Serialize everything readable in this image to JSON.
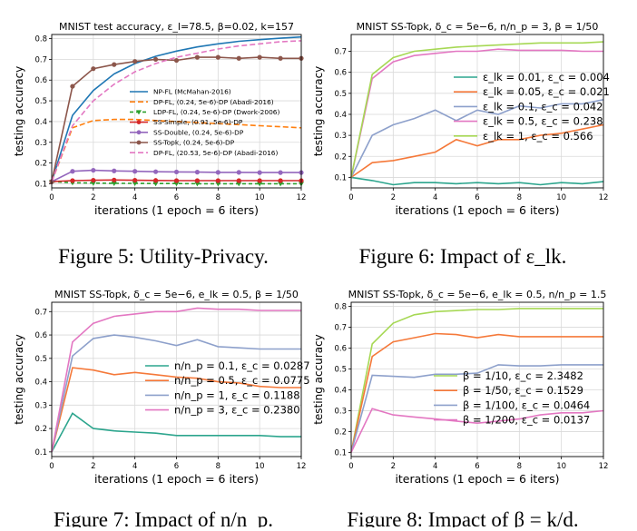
{
  "chart_data": [
    {
      "type": "line",
      "title": "MNIST test accuracy, ε_l=78.5, β=0.02, k=157",
      "xlabel": "iterations (1 epoch = 6 iters)",
      "ylabel": "testing accuracy",
      "x_ticks": [
        0,
        2,
        4,
        6,
        8,
        10,
        12
      ],
      "y_ticks": [
        0.1,
        0.2,
        0.3,
        0.4,
        0.5,
        0.6,
        0.7,
        0.8
      ],
      "xlim": [
        0,
        12
      ],
      "ylim": [
        0.08,
        0.82
      ],
      "grid": true,
      "legend": "center-right",
      "x": [
        0,
        1,
        2,
        3,
        4,
        5,
        6,
        7,
        8,
        9,
        10,
        11,
        12
      ],
      "series": [
        {
          "name": "NP-FL (McMahan-2016)",
          "color": "#1f77b4",
          "dash": "",
          "marker": "",
          "values": [
            0.11,
            0.43,
            0.55,
            0.63,
            0.68,
            0.715,
            0.74,
            0.76,
            0.775,
            0.787,
            0.795,
            0.802,
            0.808
          ]
        },
        {
          "name": "DP-FL, (0.24, 5e-6)-DP (Abadi-2016)",
          "color": "#ff7f0e",
          "dash": "6,3",
          "marker": "",
          "values": [
            0.11,
            0.37,
            0.405,
            0.41,
            0.41,
            0.405,
            0.4,
            0.395,
            0.39,
            0.385,
            0.38,
            0.375,
            0.37
          ]
        },
        {
          "name": "LDP-FL, (0.24, 5e-6)-DP (Dwork-2006)",
          "color": "#2ca02c",
          "dash": "4,3",
          "marker": "triangle",
          "values": [
            0.11,
            0.105,
            0.103,
            0.102,
            0.102,
            0.101,
            0.101,
            0.1,
            0.1,
            0.1,
            0.1,
            0.1,
            0.1
          ]
        },
        {
          "name": "SS-Simple, (0.91, 5e-6)-DP",
          "color": "#d62728",
          "dash": "",
          "marker": "circle",
          "values": [
            0.11,
            0.115,
            0.117,
            0.118,
            0.117,
            0.116,
            0.115,
            0.115,
            0.115,
            0.115,
            0.115,
            0.115,
            0.115
          ]
        },
        {
          "name": "SS-Double, (0.24, 5e-6)-DP",
          "color": "#9467bd",
          "dash": "",
          "marker": "circle",
          "values": [
            0.11,
            0.16,
            0.165,
            0.162,
            0.16,
            0.158,
            0.157,
            0.156,
            0.155,
            0.155,
            0.154,
            0.154,
            0.154
          ]
        },
        {
          "name": "SS-Topk, (0.24, 5e-6)-DP",
          "color": "#8c564b",
          "dash": "",
          "marker": "circle",
          "values": [
            0.11,
            0.57,
            0.655,
            0.675,
            0.69,
            0.7,
            0.695,
            0.71,
            0.71,
            0.705,
            0.71,
            0.705,
            0.705
          ]
        },
        {
          "name": "DP-FL, (20.53, 5e-6)-DP (Abadi-2016)",
          "color": "#e377c2",
          "dash": "6,3",
          "marker": "",
          "values": [
            0.11,
            0.38,
            0.5,
            0.58,
            0.64,
            0.68,
            0.71,
            0.73,
            0.75,
            0.765,
            0.775,
            0.785,
            0.79
          ]
        }
      ]
    },
    {
      "type": "line",
      "title": "MNIST SS-Topk, δ_c = 5e−6, n/n_p = 3, β = 1/50",
      "xlabel": "iterations (1 epoch = 6 iters)",
      "ylabel": "testing accuracy",
      "x_ticks": [
        0,
        2,
        4,
        6,
        8,
        10,
        12
      ],
      "y_ticks": [
        0.1,
        0.2,
        0.3,
        0.4,
        0.5,
        0.6,
        0.7
      ],
      "xlim": [
        0,
        12
      ],
      "ylim": [
        0.05,
        0.78
      ],
      "grid": true,
      "legend": "center-right",
      "x": [
        0,
        1,
        2,
        3,
        4,
        5,
        6,
        7,
        8,
        9,
        10,
        11,
        12
      ],
      "series": [
        {
          "name": "ε_lk = 0.01, ε_c = 0.004",
          "color": "#2ca58d",
          "values": [
            0.1,
            0.085,
            0.065,
            0.075,
            0.075,
            0.07,
            0.075,
            0.07,
            0.075,
            0.065,
            0.075,
            0.07,
            0.08
          ]
        },
        {
          "name": "ε_lk = 0.05, ε_c = 0.021",
          "color": "#f5793a",
          "values": [
            0.1,
            0.17,
            0.18,
            0.2,
            0.22,
            0.28,
            0.25,
            0.28,
            0.28,
            0.3,
            0.31,
            0.33,
            0.35
          ]
        },
        {
          "name": "ε_lk = 0.1, ε_c = 0.042",
          "color": "#8da0cb",
          "values": [
            0.1,
            0.3,
            0.35,
            0.38,
            0.42,
            0.37,
            0.42,
            0.4,
            0.44,
            0.43,
            0.45,
            0.45,
            0.47
          ]
        },
        {
          "name": "ε_lk = 0.5, ε_c = 0.238",
          "color": "#e377c2",
          "values": [
            0.1,
            0.57,
            0.65,
            0.68,
            0.69,
            0.7,
            0.7,
            0.71,
            0.705,
            0.705,
            0.705,
            0.7,
            0.7
          ]
        },
        {
          "name": "ε_lk = 1, ε_c = 0.566",
          "color": "#a6d854",
          "values": [
            0.1,
            0.59,
            0.67,
            0.7,
            0.71,
            0.72,
            0.725,
            0.73,
            0.735,
            0.74,
            0.74,
            0.74,
            0.745
          ]
        }
      ]
    },
    {
      "type": "line",
      "title": "MNIST SS-Topk, δ_c = 5e−6, e_lk = 0.5, β = 1/50",
      "xlabel": "iterations (1 epoch = 6 iters)",
      "ylabel": "testing accuracy",
      "x_ticks": [
        0,
        2,
        4,
        6,
        8,
        10,
        12
      ],
      "y_ticks": [
        0.1,
        0.2,
        0.3,
        0.4,
        0.5,
        0.6,
        0.7
      ],
      "xlim": [
        0,
        12
      ],
      "ylim": [
        0.08,
        0.74
      ],
      "grid": true,
      "legend": "center",
      "x": [
        0,
        1,
        2,
        3,
        4,
        5,
        6,
        7,
        8,
        9,
        10,
        11,
        12
      ],
      "series": [
        {
          "name": "n/n_p = 0.1, ε_c = 0.0287",
          "color": "#2ca58d",
          "values": [
            0.1,
            0.265,
            0.2,
            0.19,
            0.185,
            0.18,
            0.17,
            0.17,
            0.17,
            0.17,
            0.17,
            0.165,
            0.165
          ]
        },
        {
          "name": "n/n_p = 0.5, ε_c = 0.0775",
          "color": "#f5793a",
          "values": [
            0.1,
            0.46,
            0.45,
            0.43,
            0.44,
            0.43,
            0.42,
            0.415,
            0.4,
            0.395,
            0.38,
            0.375,
            0.375
          ]
        },
        {
          "name": "n/n_p = 1, ε_c = 0.1188",
          "color": "#8da0cb",
          "values": [
            0.1,
            0.51,
            0.585,
            0.6,
            0.59,
            0.575,
            0.555,
            0.58,
            0.55,
            0.545,
            0.54,
            0.54,
            0.54
          ]
        },
        {
          "name": "n/n_p = 3, ε_c = 0.2380",
          "color": "#e377c2",
          "values": [
            0.1,
            0.57,
            0.65,
            0.68,
            0.69,
            0.7,
            0.7,
            0.715,
            0.71,
            0.71,
            0.705,
            0.705,
            0.705
          ]
        }
      ]
    },
    {
      "type": "line",
      "title": "MNIST SS-Topk, δ_c = 5e−6, e_lk = 0.5, n/n_p = 1.5",
      "xlabel": "iterations (1 epoch = 6 iters)",
      "ylabel": "testing accuracy",
      "x_ticks": [
        0,
        2,
        4,
        6,
        8,
        10,
        12
      ],
      "y_ticks": [
        0.1,
        0.2,
        0.3,
        0.4,
        0.5,
        0.6,
        0.7,
        0.8
      ],
      "xlim": [
        0,
        12
      ],
      "ylim": [
        0.08,
        0.82
      ],
      "grid": true,
      "legend": "center",
      "x": [
        0,
        1,
        2,
        3,
        4,
        5,
        6,
        7,
        8,
        9,
        10,
        11,
        12
      ],
      "series": [
        {
          "name": "β = 1/10, ε_c = 2.3482",
          "color": "#a6d854",
          "values": [
            0.1,
            0.62,
            0.72,
            0.76,
            0.775,
            0.78,
            0.785,
            0.785,
            0.79,
            0.79,
            0.79,
            0.79,
            0.79
          ]
        },
        {
          "name": "β = 1/50, ε_c = 0.1529",
          "color": "#f5793a",
          "values": [
            0.1,
            0.56,
            0.63,
            0.65,
            0.67,
            0.665,
            0.65,
            0.665,
            0.655,
            0.655,
            0.655,
            0.655,
            0.655
          ]
        },
        {
          "name": "β = 1/100, ε_c = 0.0464",
          "color": "#8da0cb",
          "values": [
            0.1,
            0.47,
            0.465,
            0.46,
            0.475,
            0.475,
            0.48,
            0.52,
            0.515,
            0.515,
            0.52,
            0.52,
            0.52
          ]
        },
        {
          "name": "β = 1/200, ε_c = 0.0137",
          "color": "#e377c2",
          "values": [
            0.1,
            0.31,
            0.28,
            0.27,
            0.26,
            0.25,
            0.24,
            0.25,
            0.26,
            0.28,
            0.29,
            0.29,
            0.3
          ]
        }
      ]
    }
  ],
  "captions": {
    "fig5": "Figure 5: Utility-Privacy.",
    "fig6": "Figure 6: Impact of ε_lk.",
    "fig7": "Figure 7: Impact of n/n_p.",
    "fig8": "Figure 8: Impact of β = k/d."
  }
}
